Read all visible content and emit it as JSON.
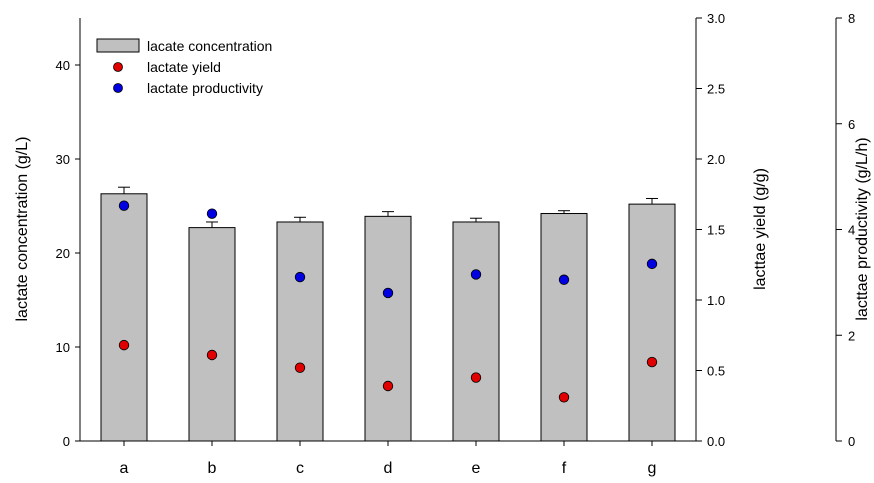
{
  "chart_data": {
    "type": "bar",
    "categories": [
      "a",
      "b",
      "c",
      "d",
      "e",
      "f",
      "g"
    ],
    "series": [
      {
        "name": "lacate concentration",
        "type": "bar",
        "axis": "left",
        "values": [
          26.3,
          22.7,
          23.3,
          23.9,
          23.3,
          24.2,
          25.2
        ],
        "error": [
          0.7,
          0.6,
          0.5,
          0.5,
          0.4,
          0.3,
          0.6
        ],
        "color": "#c0c0c0"
      },
      {
        "name": "lactate yield",
        "type": "scatter",
        "axis": "right1",
        "values": [
          0.68,
          0.61,
          0.52,
          0.39,
          0.45,
          0.31,
          0.56
        ],
        "color": "#e00000"
      },
      {
        "name": "lactate productivity",
        "type": "scatter",
        "axis": "right2",
        "values": [
          4.45,
          4.3,
          3.1,
          2.8,
          3.15,
          3.05,
          3.35
        ],
        "color": "#0000e0"
      }
    ],
    "axes": {
      "left": {
        "label": "lactate concentration (g/L)",
        "ylim": [
          0,
          45
        ],
        "ticks": [
          "0",
          "10",
          "20",
          "30",
          "40"
        ]
      },
      "right1": {
        "label": "lacttae yield (g/g)",
        "ylim": [
          0,
          3.0
        ],
        "ticks": [
          "0.0",
          "0.5",
          "1.0",
          "1.5",
          "2.0",
          "2.5",
          "3.0"
        ]
      },
      "right2": {
        "label": "lacttae productivity (g/L/h)",
        "ylim": [
          0,
          8
        ],
        "ticks": [
          "0",
          "2",
          "4",
          "6",
          "8"
        ]
      }
    },
    "legend_position": "top-left",
    "grid": false
  }
}
